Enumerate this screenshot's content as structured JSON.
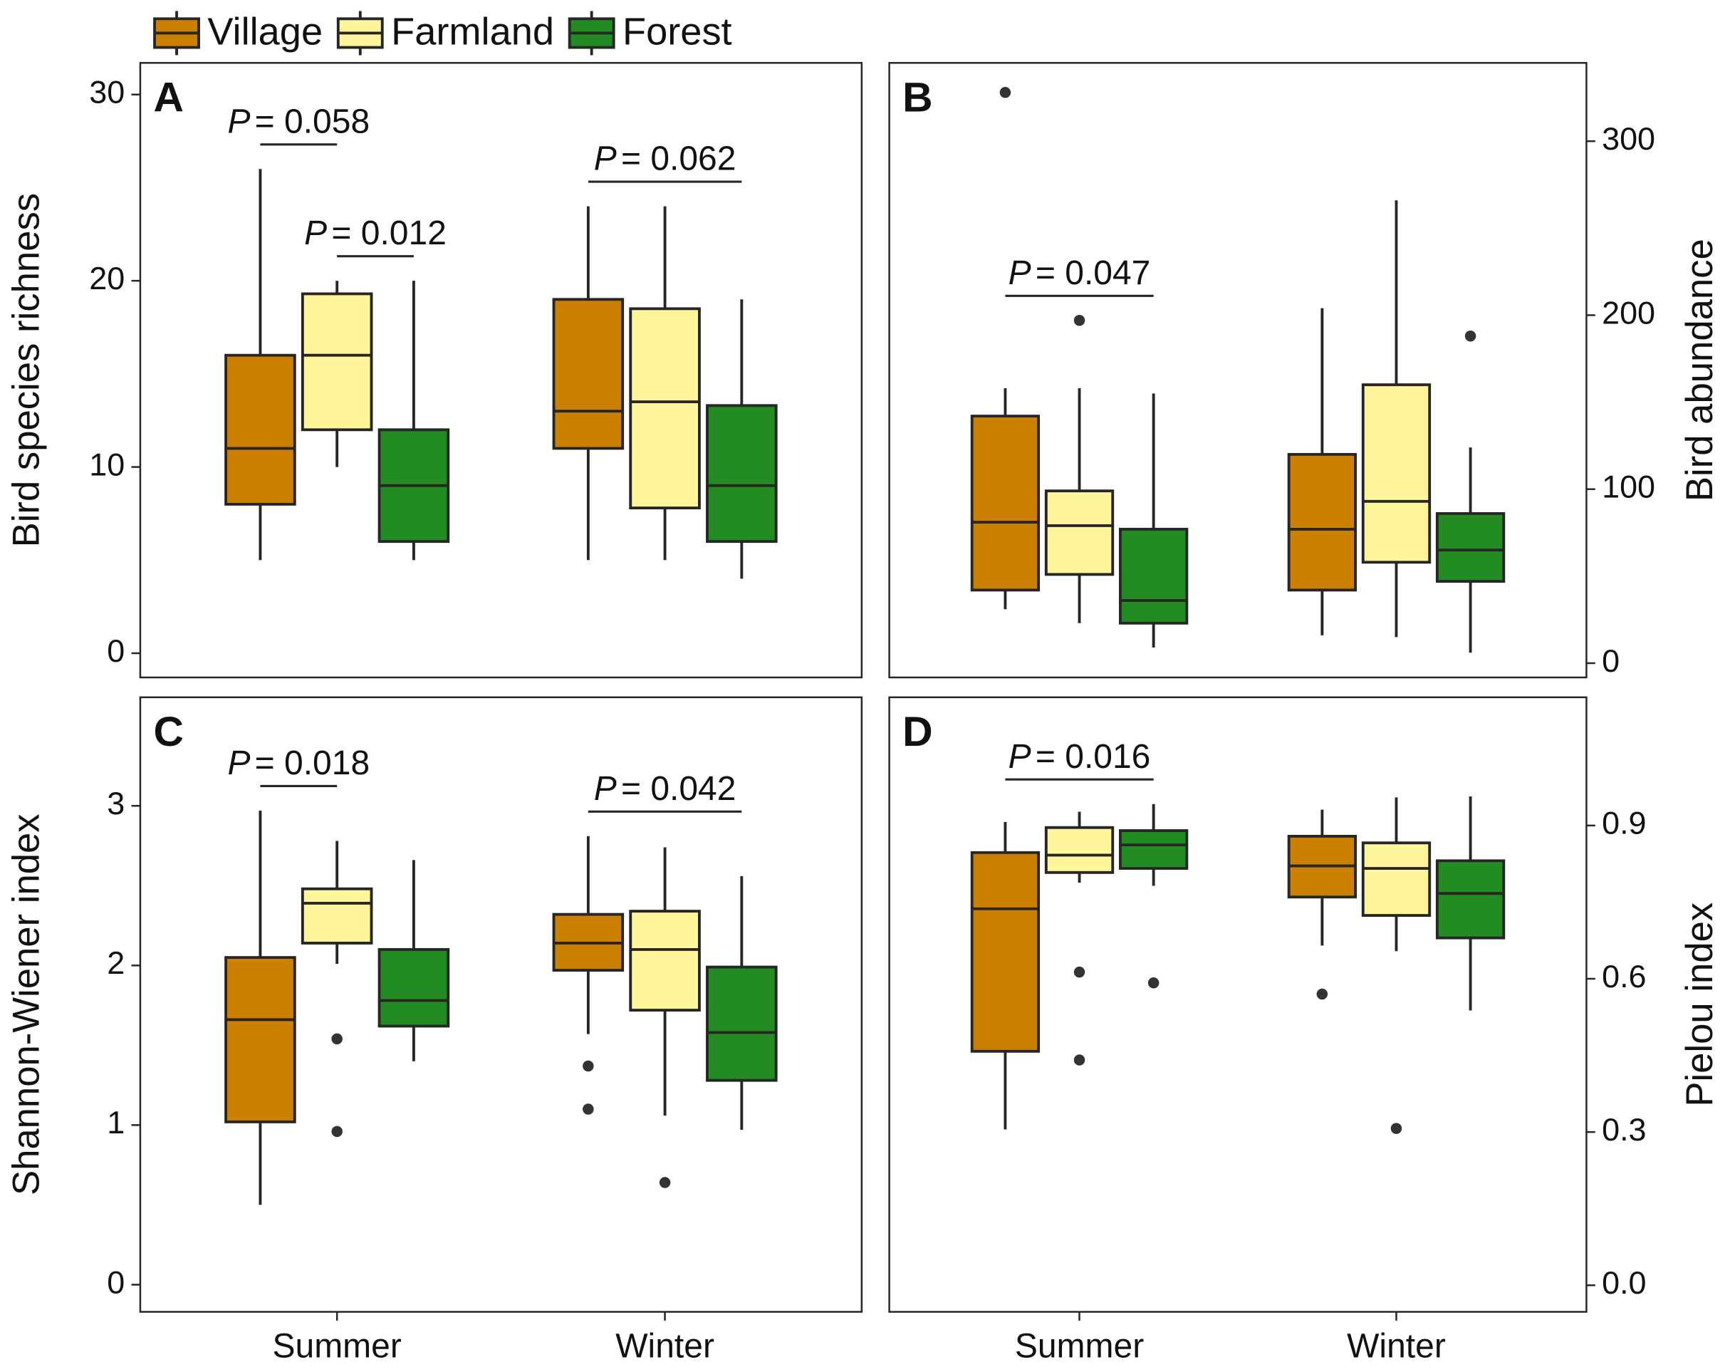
{
  "chart_data": [
    {
      "type": "box",
      "label": "A",
      "ylabel": "Bird species richness",
      "yaxis_position": "left",
      "x_tick_labels": false,
      "ylim": [
        -1.3,
        31.7
      ],
      "yticks": [
        0,
        10,
        20,
        30
      ],
      "categories": [
        "Summer",
        "Winter"
      ],
      "series": [
        {
          "name": "Village",
          "color": "#cc8000",
          "values": [
            {
              "min": 5,
              "q1": 8,
              "median": 11,
              "q3": 16,
              "max": 26,
              "outliers": []
            },
            {
              "min": 5,
              "q1": 11,
              "median": 13,
              "q3": 19,
              "max": 24,
              "outliers": []
            }
          ]
        },
        {
          "name": "Farmland",
          "color": "#fff59a",
          "values": [
            {
              "min": 10,
              "q1": 12,
              "median": 16,
              "q3": 19.3,
              "max": 20,
              "outliers": []
            },
            {
              "min": 5,
              "q1": 7.8,
              "median": 13.5,
              "q3": 18.5,
              "max": 24,
              "outliers": []
            }
          ]
        },
        {
          "name": "Forest",
          "color": "#228b22",
          "values": [
            {
              "min": 5,
              "q1": 6,
              "median": 9,
              "q3": 12,
              "max": 20,
              "outliers": []
            },
            {
              "min": 4,
              "q1": 6,
              "median": 9,
              "q3": 13.3,
              "max": 19,
              "outliers": []
            }
          ]
        }
      ],
      "annotations": [
        {
          "symbol": "P",
          "text": "= 0.058",
          "category": "Summer",
          "between": [
            "Village",
            "Farmland"
          ]
        },
        {
          "symbol": "P",
          "text": "= 0.012",
          "category": "Summer",
          "between": [
            "Farmland",
            "Forest"
          ]
        },
        {
          "symbol": "P",
          "text": "= 0.062",
          "category": "Winter",
          "between": [
            "Village",
            "Forest"
          ]
        }
      ]
    },
    {
      "type": "box",
      "label": "B",
      "ylabel": "Bird abundance",
      "yaxis_position": "right",
      "x_tick_labels": false,
      "ylim": [
        -8.2,
        345
      ],
      "yticks": [
        0,
        100,
        200,
        300
      ],
      "categories": [
        "Summer",
        "Winter"
      ],
      "series": [
        {
          "name": "Village",
          "color": "#cc8000",
          "values": [
            {
              "min": 31,
              "q1": 42,
              "median": 81,
              "q3": 142,
              "max": 158,
              "outliers": [
                328
              ]
            },
            {
              "min": 16,
              "q1": 42,
              "median": 77,
              "q3": 120,
              "max": 204,
              "outliers": []
            }
          ]
        },
        {
          "name": "Farmland",
          "color": "#fff59a",
          "values": [
            {
              "min": 23,
              "q1": 51,
              "median": 79,
              "q3": 99,
              "max": 158,
              "outliers": [
                197
              ]
            },
            {
              "min": 15,
              "q1": 58,
              "median": 93,
              "q3": 160,
              "max": 266,
              "outliers": []
            }
          ]
        },
        {
          "name": "Forest",
          "color": "#228b22",
          "values": [
            {
              "min": 9,
              "q1": 23,
              "median": 36,
              "q3": 77,
              "max": 155,
              "outliers": []
            },
            {
              "min": 6,
              "q1": 47,
              "median": 65,
              "q3": 86,
              "max": 124,
              "outliers": [
                188
              ]
            }
          ]
        }
      ],
      "annotations": [
        {
          "symbol": "P",
          "text": "= 0.047",
          "category": "Summer",
          "between": [
            "Village",
            "Forest"
          ]
        }
      ]
    },
    {
      "type": "box",
      "label": "C",
      "ylabel": "Shannon-Wiener index",
      "yaxis_position": "left",
      "x_tick_labels": true,
      "ylim": [
        -0.17,
        3.68
      ],
      "yticks": [
        0,
        1,
        2,
        3
      ],
      "categories": [
        "Summer",
        "Winter"
      ],
      "series": [
        {
          "name": "Village",
          "color": "#cc8000",
          "values": [
            {
              "min": 0.5,
              "q1": 1.02,
              "median": 1.66,
              "q3": 2.05,
              "max": 2.97,
              "outliers": []
            },
            {
              "min": 1.57,
              "q1": 1.97,
              "median": 2.14,
              "q3": 2.32,
              "max": 2.81,
              "outliers": [
                1.37,
                1.1
              ]
            }
          ]
        },
        {
          "name": "Farmland",
          "color": "#fff59a",
          "values": [
            {
              "min": 2.01,
              "q1": 2.14,
              "median": 2.39,
              "q3": 2.48,
              "max": 2.78,
              "outliers": [
                1.54,
                0.96
              ]
            },
            {
              "min": 1.06,
              "q1": 1.72,
              "median": 2.1,
              "q3": 2.34,
              "max": 2.74,
              "outliers": [
                0.64
              ]
            }
          ]
        },
        {
          "name": "Forest",
          "color": "#228b22",
          "values": [
            {
              "min": 1.4,
              "q1": 1.62,
              "median": 1.78,
              "q3": 2.1,
              "max": 2.66,
              "outliers": []
            },
            {
              "min": 0.97,
              "q1": 1.28,
              "median": 1.58,
              "q3": 1.99,
              "max": 2.56,
              "outliers": []
            }
          ]
        }
      ],
      "annotations": [
        {
          "symbol": "P",
          "text": "= 0.018",
          "category": "Summer",
          "between": [
            "Village",
            "Farmland"
          ]
        },
        {
          "symbol": "P",
          "text": "= 0.042",
          "category": "Winter",
          "between": [
            "Village",
            "Forest"
          ]
        }
      ]
    },
    {
      "type": "box",
      "label": "D",
      "ylabel": "Pielou index",
      "yaxis_position": "right",
      "x_tick_labels": true,
      "ylim": [
        -0.052,
        1.151
      ],
      "yticks": [
        {
          "value": 0,
          "label": "0.0"
        },
        0.3,
        0.6,
        0.9
      ],
      "categories": [
        "Summer",
        "Winter"
      ],
      "series": [
        {
          "name": "Village",
          "color": "#cc8000",
          "values": [
            {
              "min": 0.305,
              "q1": 0.458,
              "median": 0.737,
              "q3": 0.847,
              "max": 0.907,
              "outliers": []
            },
            {
              "min": 0.665,
              "q1": 0.76,
              "median": 0.821,
              "q3": 0.879,
              "max": 0.931,
              "outliers": [
                0.57
              ]
            }
          ]
        },
        {
          "name": "Farmland",
          "color": "#fff59a",
          "values": [
            {
              "min": 0.788,
              "q1": 0.808,
              "median": 0.842,
              "q3": 0.896,
              "max": 0.927,
              "outliers": [
                0.613,
                0.441
              ]
            },
            {
              "min": 0.654,
              "q1": 0.724,
              "median": 0.816,
              "q3": 0.866,
              "max": 0.955,
              "outliers": [
                0.307
              ]
            }
          ]
        },
        {
          "name": "Forest",
          "color": "#228b22",
          "values": [
            {
              "min": 0.782,
              "q1": 0.816,
              "median": 0.862,
              "q3": 0.89,
              "max": 0.942,
              "outliers": [
                0.592
              ]
            },
            {
              "min": 0.538,
              "q1": 0.68,
              "median": 0.767,
              "q3": 0.831,
              "max": 0.957,
              "outliers": []
            }
          ]
        }
      ],
      "annotations": [
        {
          "symbol": "P",
          "text": "= 0.016",
          "category": "Summer",
          "between": [
            "Village",
            "Forest"
          ]
        }
      ]
    }
  ]
}
